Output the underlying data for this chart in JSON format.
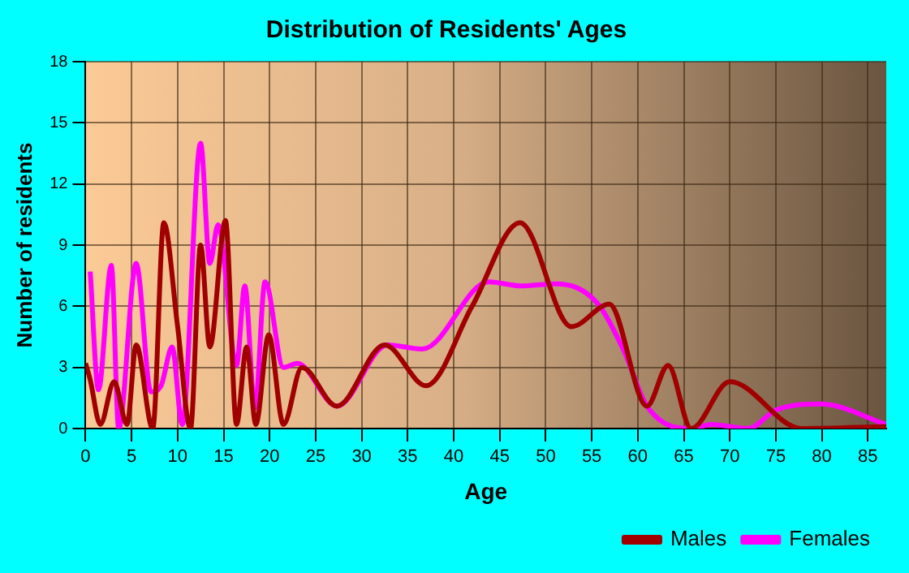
{
  "chart_data": {
    "type": "line",
    "title": "Distribution of Residents' Ages",
    "xlabel": "Age",
    "ylabel": "Number of residents",
    "xlim": [
      0,
      87
    ],
    "xticks": [
      0,
      5,
      10,
      15,
      20,
      25,
      30,
      35,
      40,
      45,
      50,
      55,
      60,
      65,
      70,
      75,
      80,
      85
    ],
    "ylim": [
      0,
      18
    ],
    "yticks": [
      0,
      3,
      6,
      9,
      12,
      15,
      18
    ],
    "grid": true,
    "legend": "bottom right",
    "marker": "none",
    "line_style": "solid",
    "series": [
      {
        "name": "Males",
        "color": "#a00000",
        "x": [
          0,
          0.5,
          1.6,
          3.1,
          4.5,
          5.5,
          7.3,
          8.5,
          10,
          11.4,
          12.5,
          13.5,
          15.2,
          16.4,
          17.5,
          18.5,
          19.9,
          21.5,
          23.5,
          27.3,
          32.5,
          37,
          42,
          47.2,
          52.8,
          56.9,
          61,
          63.3,
          65.8,
          70,
          77.8,
          87
        ],
        "values": [
          3.2,
          2.4,
          0.2,
          2.3,
          0.2,
          4.1,
          0,
          10.1,
          5,
          0,
          9,
          4,
          10.2,
          0.2,
          4,
          0.2,
          4.6,
          0.2,
          3,
          1.1,
          4.1,
          2.1,
          6,
          10.1,
          5,
          6.1,
          1.1,
          3.1,
          0,
          2.3,
          0,
          0.1
        ]
      },
      {
        "name": "Females",
        "color": "#ff00ff",
        "x": [
          0.5,
          1.4,
          2.8,
          3.6,
          5.5,
          7.1,
          8.2,
          9.4,
          10.5,
          12.5,
          13.5,
          14.4,
          16.4,
          17.3,
          18.4,
          19.5,
          21.5,
          23,
          27.3,
          32.8,
          36.6,
          43.8,
          47.3,
          51.1,
          55.5,
          58.4,
          61,
          65.8,
          68,
          72,
          75,
          80,
          87
        ],
        "values": [
          7.7,
          1.9,
          8,
          0,
          8.1,
          1.8,
          2.1,
          4,
          0.2,
          14,
          8.1,
          10,
          3.1,
          7,
          1,
          7.2,
          3,
          3.2,
          1.1,
          4.1,
          3.9,
          7.2,
          7,
          7.1,
          6.2,
          3.9,
          1.1,
          0,
          0.2,
          0,
          0.9,
          1.2,
          0.2
        ]
      }
    ]
  }
}
